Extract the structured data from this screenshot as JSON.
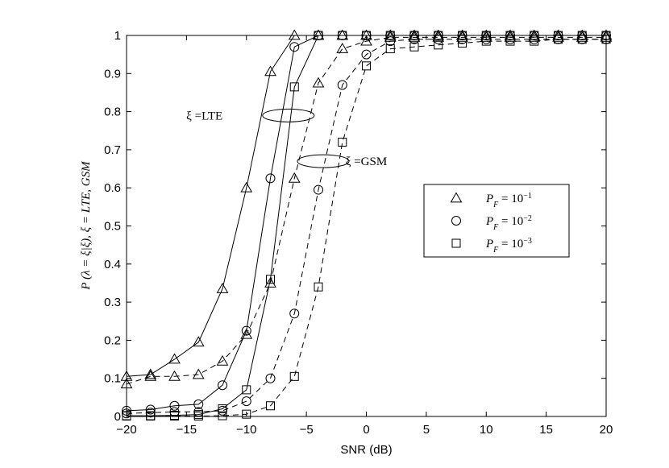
{
  "chart_data": {
    "type": "line",
    "title": "",
    "xlabel": "SNR (dB)",
    "ylabel": "P (λ = ξ|ξ), ξ = LTE, GSM",
    "xlim": [
      -20,
      20
    ],
    "ylim": [
      0,
      1
    ],
    "x_ticks": [
      "−20",
      "−15",
      "−10",
      "−5",
      "0",
      "5",
      "10",
      "15",
      "20"
    ],
    "y_ticks": [
      "0",
      "0.1",
      "0.2",
      "0.3",
      "0.4",
      "0.5",
      "0.6",
      "0.7",
      "0.8",
      "0.9",
      "1"
    ],
    "grid": false,
    "legend_position": "center-right",
    "legend": [
      {
        "label": "P_F = 10^−1",
        "base": "P",
        "sub": "F",
        "eq": " = 10",
        "sup": "−1",
        "marker": "triangle"
      },
      {
        "label": "P_F = 10^−2",
        "base": "P",
        "sub": "F",
        "eq": " = 10",
        "sup": "−2",
        "marker": "circle"
      },
      {
        "label": "P_F = 10^−3",
        "base": "P",
        "sub": "F",
        "eq": " = 10",
        "sup": "−3",
        "marker": "square"
      }
    ],
    "annotations": [
      {
        "text": "ξ =LTE",
        "x": -13.5,
        "y": 0.79,
        "ellipse_center": [
          -6.5,
          0.79
        ]
      },
      {
        "text": "ξ =GSM",
        "x": 0.0,
        "y": 0.67,
        "ellipse_center": [
          -3.6,
          0.67
        ]
      }
    ],
    "x": [
      -20,
      -18,
      -16,
      -14,
      -12,
      -10,
      -8,
      -6,
      -4,
      -2,
      0,
      2,
      4,
      6,
      8,
      10,
      12,
      14,
      16,
      18,
      20
    ],
    "series": [
      {
        "group": "LTE",
        "marker": "triangle",
        "linestyle": "solid",
        "values": [
          0.105,
          0.11,
          0.15,
          0.195,
          0.335,
          0.6,
          0.905,
          1.0,
          1.0,
          1.0,
          1.0,
          1.0,
          1.0,
          1.0,
          1.0,
          1.0,
          1.0,
          1.0,
          1.0,
          1.0,
          1.0
        ]
      },
      {
        "group": "LTE",
        "marker": "circle",
        "linestyle": "solid",
        "values": [
          0.015,
          0.018,
          0.028,
          0.032,
          0.082,
          0.225,
          0.625,
          0.97,
          1.0,
          1.0,
          1.0,
          1.0,
          1.0,
          1.0,
          1.0,
          1.0,
          1.0,
          1.0,
          1.0,
          1.0,
          1.0
        ]
      },
      {
        "group": "LTE",
        "marker": "square",
        "linestyle": "solid",
        "values": [
          0.002,
          0.002,
          0.003,
          0.005,
          0.02,
          0.07,
          0.36,
          0.865,
          1.0,
          1.0,
          1.0,
          1.0,
          1.0,
          1.0,
          1.0,
          1.0,
          1.0,
          1.0,
          1.0,
          1.0,
          1.0
        ]
      },
      {
        "group": "GSM",
        "marker": "triangle",
        "linestyle": "dashed",
        "values": [
          0.085,
          0.105,
          0.105,
          0.11,
          0.145,
          0.215,
          0.35,
          0.625,
          0.875,
          0.965,
          0.985,
          0.995,
          0.995,
          0.995,
          0.995,
          0.995,
          0.995,
          0.995,
          0.995,
          0.995,
          0.995
        ]
      },
      {
        "group": "GSM",
        "marker": "circle",
        "linestyle": "dashed",
        "values": [
          0.008,
          0.01,
          0.012,
          0.012,
          0.015,
          0.04,
          0.1,
          0.27,
          0.595,
          0.87,
          0.95,
          0.985,
          0.99,
          0.99,
          0.99,
          0.99,
          0.99,
          0.99,
          0.99,
          0.99,
          0.99
        ]
      },
      {
        "group": "GSM",
        "marker": "square",
        "linestyle": "dashed",
        "values": [
          0.001,
          0.001,
          0.001,
          0.001,
          0.002,
          0.006,
          0.028,
          0.105,
          0.34,
          0.72,
          0.92,
          0.965,
          0.97,
          0.975,
          0.98,
          0.985,
          0.985,
          0.985,
          0.99,
          0.99,
          0.99
        ]
      }
    ]
  }
}
